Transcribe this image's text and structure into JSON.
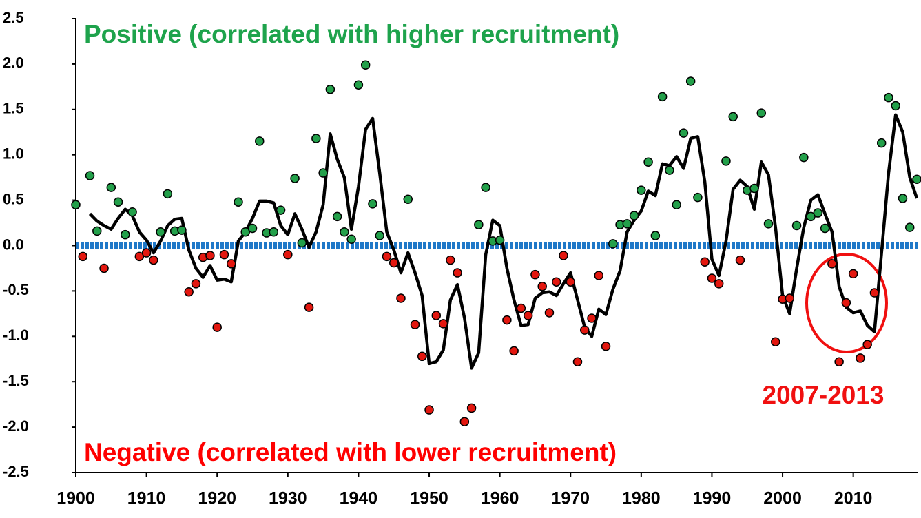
{
  "chart_data": {
    "type": "scatter",
    "annotations": {
      "positive": "Positive (correlated with higher recruitment)",
      "negative": "Negative (correlated with lower recruitment)",
      "highlight": "2007-2013"
    },
    "x": [
      1900,
      1901,
      1902,
      1903,
      1904,
      1905,
      1906,
      1907,
      1908,
      1909,
      1910,
      1911,
      1912,
      1913,
      1914,
      1915,
      1916,
      1917,
      1918,
      1919,
      1920,
      1921,
      1922,
      1923,
      1924,
      1925,
      1926,
      1927,
      1928,
      1929,
      1930,
      1931,
      1932,
      1933,
      1934,
      1935,
      1936,
      1937,
      1938,
      1939,
      1940,
      1941,
      1942,
      1943,
      1944,
      1945,
      1946,
      1947,
      1948,
      1949,
      1950,
      1951,
      1952,
      1953,
      1954,
      1955,
      1956,
      1957,
      1958,
      1959,
      1960,
      1961,
      1962,
      1963,
      1964,
      1965,
      1966,
      1967,
      1968,
      1969,
      1970,
      1971,
      1972,
      1973,
      1974,
      1975,
      1976,
      1977,
      1978,
      1979,
      1980,
      1981,
      1982,
      1983,
      1984,
      1985,
      1986,
      1987,
      1988,
      1989,
      1990,
      1991,
      1992,
      1993,
      1994,
      1995,
      1996,
      1997,
      1998,
      1999,
      2000,
      2001,
      2002,
      2003,
      2004,
      2005,
      2006,
      2007,
      2008,
      2009,
      2010,
      2011,
      2012,
      2013,
      2014,
      2015,
      2016,
      2017,
      2018,
      2019
    ],
    "values": [
      0.45,
      -0.12,
      0.77,
      0.16,
      -0.25,
      0.64,
      0.48,
      0.12,
      0.37,
      -0.12,
      -0.08,
      -0.16,
      0.15,
      0.57,
      0.16,
      0.17,
      -0.51,
      -0.42,
      -0.13,
      -0.11,
      -0.9,
      -0.1,
      -0.2,
      0.48,
      0.15,
      0.19,
      1.15,
      0.14,
      0.15,
      0.39,
      -0.1,
      0.74,
      0.03,
      -0.68,
      1.18,
      0.8,
      1.72,
      0.32,
      0.15,
      0.07,
      1.77,
      1.99,
      0.46,
      0.11,
      -0.12,
      -0.19,
      -0.58,
      0.51,
      -0.87,
      -1.22,
      -1.81,
      -0.77,
      -0.86,
      -0.16,
      -0.3,
      -1.94,
      -1.79,
      0.23,
      0.64,
      0.05,
      0.06,
      -0.82,
      -1.16,
      -0.69,
      -0.77,
      -0.32,
      -0.45,
      -0.74,
      -0.4,
      -0.11,
      -0.4,
      -1.28,
      -0.93,
      -0.8,
      -0.33,
      -1.11,
      0.02,
      0.23,
      0.24,
      0.33,
      0.61,
      0.92,
      0.11,
      1.64,
      0.83,
      0.45,
      1.24,
      1.81,
      0.53,
      -0.18,
      -0.36,
      -0.42,
      0.93,
      1.42,
      -0.16,
      0.61,
      0.63,
      1.46,
      0.24,
      -1.06,
      -0.59,
      -0.58,
      0.22,
      0.97,
      0.32,
      0.36,
      0.19,
      -0.2,
      -1.28,
      -0.63,
      -0.31,
      -1.24,
      -1.09,
      -0.52,
      1.13,
      1.63,
      1.54,
      0.52,
      0.2,
      0.73
    ],
    "line_values": [
      null,
      null,
      0.35,
      0.27,
      0.22,
      0.18,
      0.3,
      0.4,
      0.33,
      0.15,
      0.06,
      -0.08,
      0.05,
      0.22,
      0.29,
      0.3,
      -0.05,
      -0.25,
      -0.35,
      -0.22,
      -0.38,
      -0.37,
      -0.4,
      0.05,
      0.15,
      0.3,
      0.49,
      0.49,
      0.47,
      0.22,
      0.12,
      0.35,
      0.18,
      -0.02,
      0.15,
      0.45,
      1.23,
      0.95,
      0.75,
      0.18,
      0.65,
      1.28,
      1.4,
      0.8,
      0.15,
      -0.05,
      -0.3,
      -0.08,
      -0.3,
      -0.55,
      -1.3,
      -1.28,
      -1.15,
      -0.6,
      -0.43,
      -0.8,
      -1.35,
      -1.18,
      -0.1,
      0.28,
      0.22,
      -0.25,
      -0.6,
      -0.88,
      -0.87,
      -0.58,
      -0.52,
      -0.51,
      -0.55,
      -0.42,
      -0.3,
      -0.6,
      -0.9,
      -1.0,
      -0.7,
      -0.76,
      -0.48,
      -0.28,
      0.15,
      0.28,
      0.38,
      0.6,
      0.55,
      0.9,
      0.88,
      0.98,
      0.85,
      1.18,
      1.2,
      0.7,
      -0.15,
      -0.33,
      0.05,
      0.62,
      0.72,
      0.65,
      0.4,
      0.92,
      0.78,
      0.2,
      -0.55,
      -0.75,
      -0.25,
      0.2,
      0.5,
      0.56,
      0.35,
      0.15,
      -0.45,
      -0.68,
      -0.74,
      -0.72,
      -0.88,
      -0.95,
      -0.08,
      0.8,
      1.44,
      1.25,
      0.75,
      0.52
    ],
    "positive_color": "#23a04a",
    "negative_color": "#e3170f",
    "line_color": "#000000",
    "reference_line": 0,
    "reference_color": "#1f78c8",
    "xlim": [
      1900,
      2019
    ],
    "xticks": [
      1900,
      1910,
      1920,
      1930,
      1940,
      1950,
      1960,
      1970,
      1980,
      1990,
      2000,
      2010
    ],
    "ylim": [
      -2.5,
      2.5
    ],
    "yticks": [
      2.5,
      {
        "value": 2,
        "label": "2.0"
      },
      1.5,
      {
        "value": 1,
        "label": "1.0"
      },
      0.5,
      {
        "value": 0,
        "label": "0.0"
      },
      -0.5,
      {
        "value": -1,
        "label": "-1.0"
      },
      -1.5,
      {
        "value": -2,
        "label": "-2.0"
      },
      -2.5
    ]
  }
}
